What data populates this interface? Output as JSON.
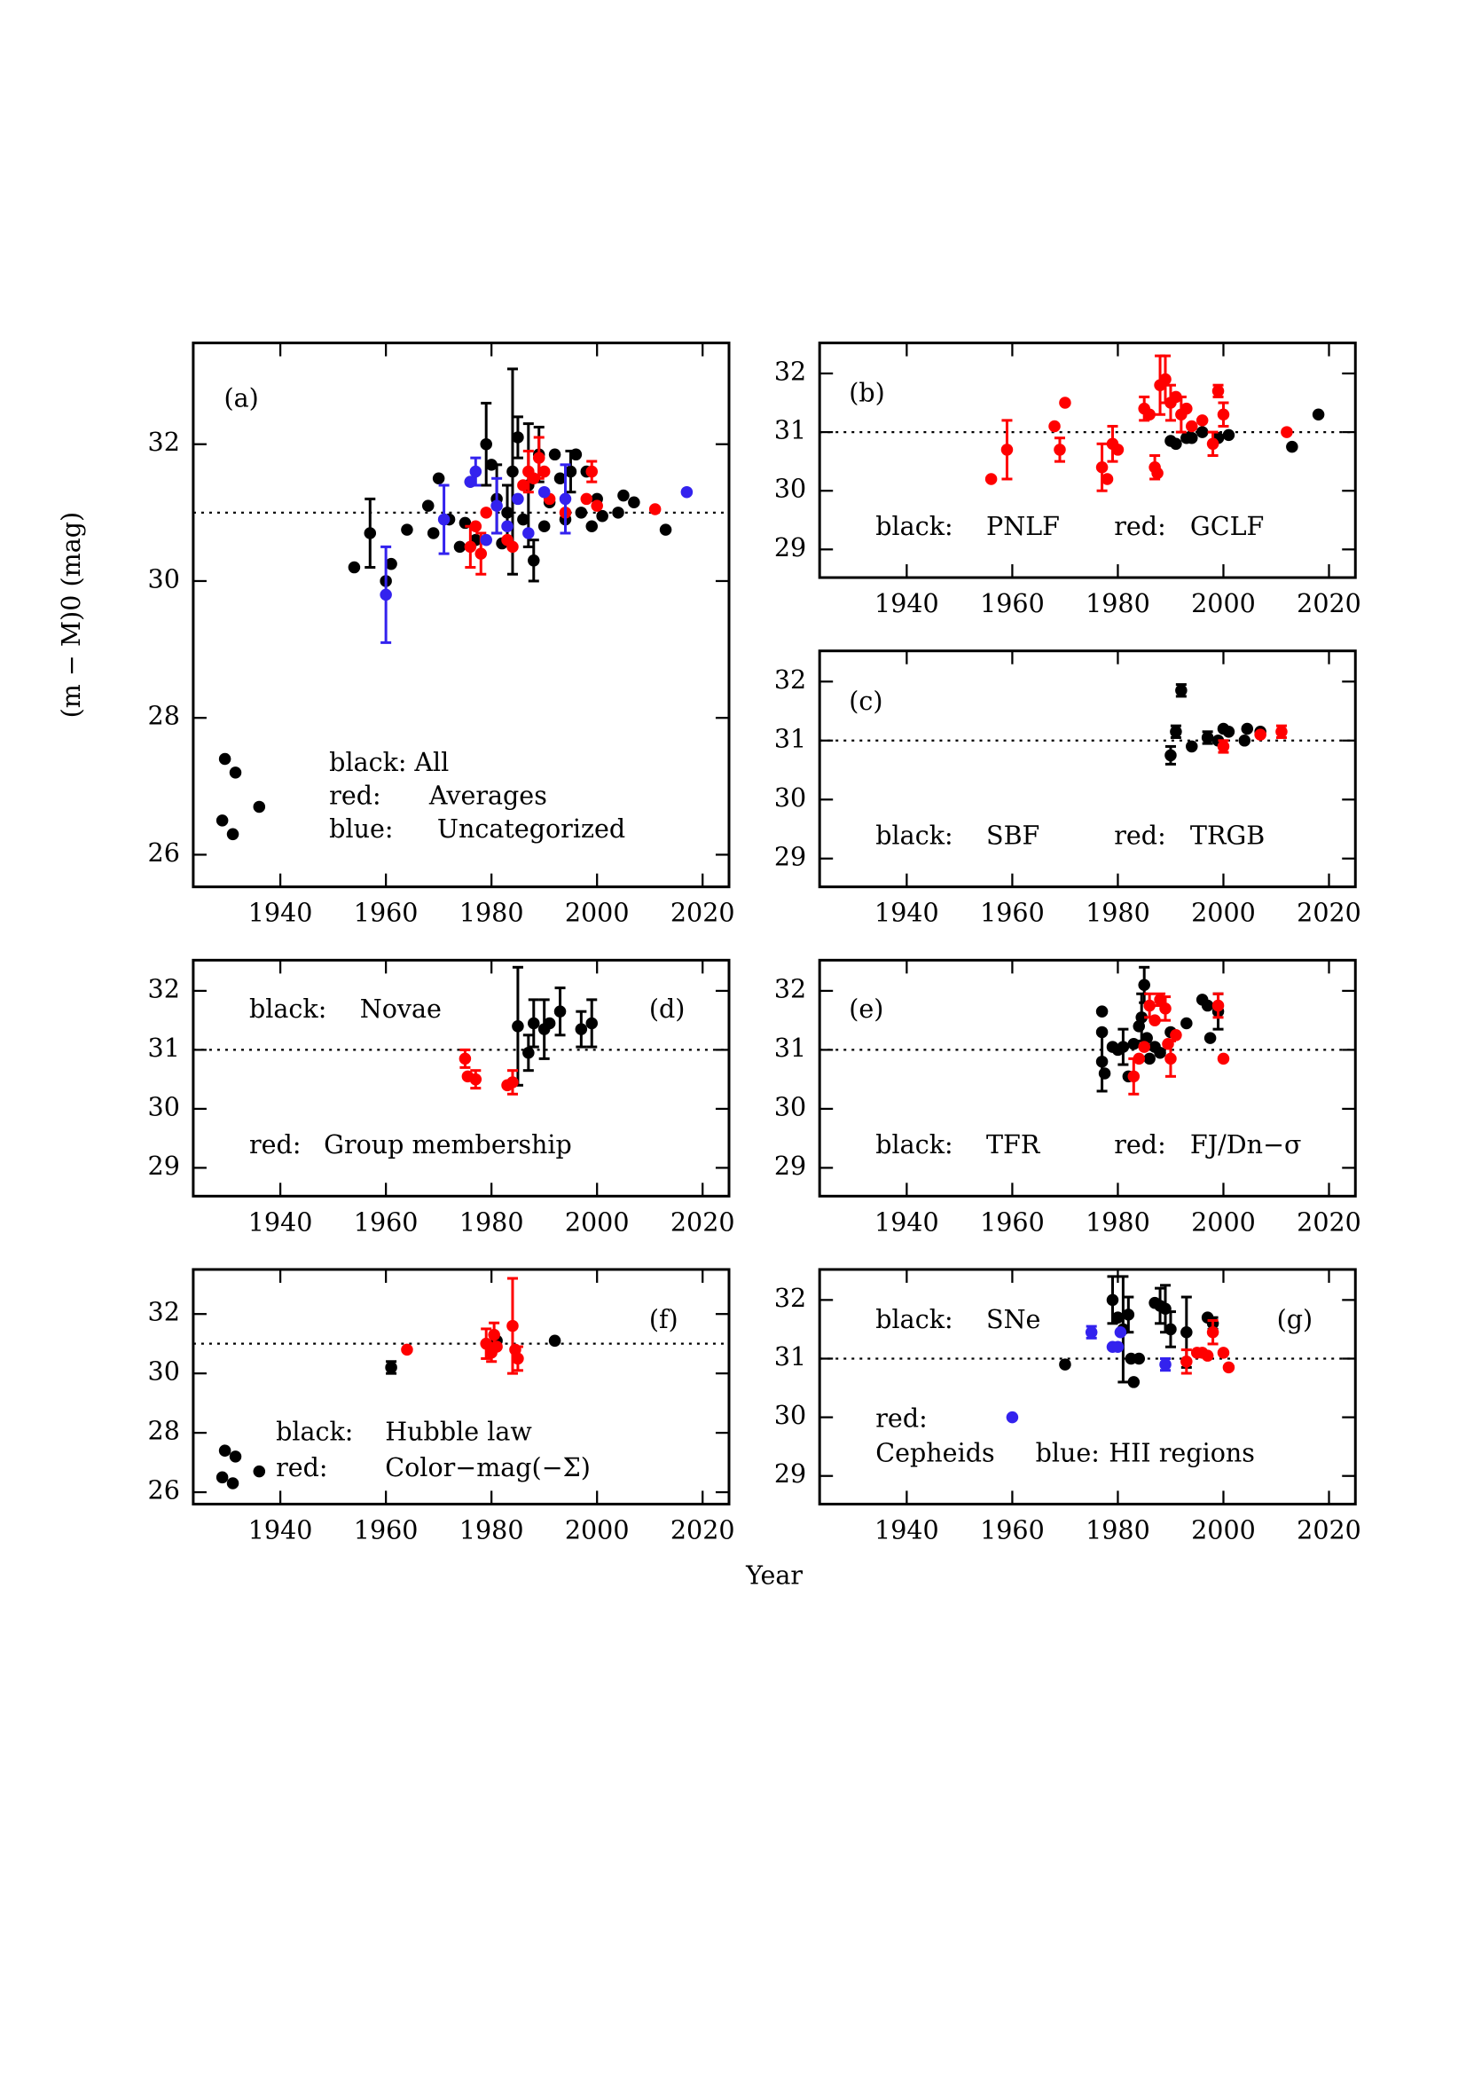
{
  "figure": {
    "xlabel": "Year",
    "ylabel": "(m − M)0 (mag)"
  },
  "chart_data": [
    {
      "type": "scatter",
      "label": "(a)",
      "xlim": [
        1923.5,
        2025
      ],
      "ylim": [
        25.53,
        33.48
      ],
      "xticks": [
        1940,
        1960,
        1980,
        2000,
        2020
      ],
      "yticks": [
        26,
        28,
        30,
        32
      ],
      "reference_line": 31,
      "series": [
        {
          "key": "black:",
          "name": "All",
          "color": "#000000",
          "x": [
            1929,
            1929.5,
            1931,
            1931.5,
            1936,
            1954,
            1957,
            1960,
            1961,
            1964,
            1968,
            1969,
            1970,
            1972,
            1974,
            1975,
            1976,
            1977,
            1979,
            1980,
            1981,
            1982,
            1983,
            1984,
            1985,
            1986,
            1987,
            1988,
            1989,
            1990,
            1991,
            1992,
            1993,
            1994,
            1995,
            1996,
            1997,
            1998,
            1999,
            2000,
            2001,
            2004,
            2005,
            2007,
            2013
          ],
          "values": [
            26.5,
            27.4,
            26.3,
            27.2,
            26.7,
            30.2,
            30.7,
            30.0,
            30.25,
            30.75,
            31.1,
            30.7,
            31.5,
            30.9,
            30.5,
            30.85,
            31.45,
            30.6,
            32.0,
            31.7,
            31.2,
            30.55,
            31.0,
            31.6,
            32.1,
            30.9,
            31.4,
            30.3,
            31.85,
            30.8,
            31.15,
            31.85,
            31.5,
            30.9,
            31.6,
            31.85,
            31.0,
            31.6,
            30.8,
            31.2,
            30.95,
            31.0,
            31.25,
            31.15,
            30.75
          ],
          "errors": [
            null,
            null,
            null,
            null,
            null,
            null,
            0.5,
            null,
            null,
            null,
            null,
            null,
            null,
            null,
            null,
            null,
            null,
            null,
            0.6,
            null,
            0.5,
            null,
            0.4,
            1.5,
            0.3,
            null,
            0.9,
            0.3,
            0.4,
            null,
            null,
            null,
            null,
            null,
            0.3,
            null,
            null,
            null,
            null,
            null,
            null,
            null,
            null,
            null,
            null
          ]
        },
        {
          "key": "red:",
          "name": "Averages",
          "color": "#ff0000",
          "x": [
            1976,
            1977,
            1978,
            1979,
            1983,
            1984,
            1986,
            1987,
            1988,
            1989,
            1990,
            1991,
            1994,
            1998,
            1999,
            2000,
            2011
          ],
          "values": [
            30.5,
            30.8,
            30.4,
            31.0,
            30.6,
            30.5,
            31.4,
            31.6,
            31.5,
            31.8,
            31.6,
            31.2,
            31.0,
            31.2,
            31.6,
            31.1,
            31.05
          ],
          "errors": [
            0.3,
            null,
            0.3,
            null,
            null,
            null,
            null,
            0.3,
            null,
            0.3,
            null,
            null,
            null,
            null,
            0.15,
            null,
            null
          ]
        },
        {
          "key": "blue:",
          "name": "Uncategorized",
          "color": "#3322ee",
          "x": [
            1960,
            1971,
            1976,
            1977,
            1979,
            1981,
            1983,
            1985,
            1987,
            1990,
            1994,
            2017
          ],
          "values": [
            29.8,
            30.9,
            31.45,
            31.6,
            30.6,
            31.1,
            30.8,
            31.2,
            30.7,
            31.3,
            31.2,
            31.3
          ],
          "errors": [
            0.7,
            0.5,
            null,
            0.2,
            null,
            0.4,
            null,
            null,
            null,
            null,
            0.5,
            null
          ]
        }
      ]
    },
    {
      "type": "scatter",
      "label": "(b)",
      "xlim": [
        1923.5,
        2025
      ],
      "ylim": [
        28.52,
        32.52
      ],
      "xticks": [
        1940,
        1960,
        1980,
        2000,
        2020
      ],
      "yticks": [
        29,
        30,
        31,
        32
      ],
      "reference_line": 31,
      "series": [
        {
          "key": "black:",
          "name": "PNLF",
          "color": "#000000",
          "x": [
            1990,
            1991,
            1993,
            1994,
            1996,
            1999,
            2001,
            2013,
            2018
          ],
          "values": [
            30.85,
            30.8,
            30.9,
            30.9,
            31.0,
            30.9,
            30.95,
            30.75,
            31.3
          ],
          "errors": [
            null,
            null,
            null,
            null,
            null,
            null,
            null,
            null,
            null
          ]
        },
        {
          "key": "red:",
          "name": "GCLF",
          "color": "#ff0000",
          "x": [
            1956,
            1959,
            1968,
            1969,
            1970,
            1977,
            1978,
            1979,
            1980,
            1985,
            1986,
            1987,
            1987.5,
            1988,
            1989,
            1990,
            1991,
            1992,
            1993,
            1994,
            1996,
            1998,
            1999,
            2000,
            2012
          ],
          "values": [
            30.2,
            30.7,
            31.1,
            30.7,
            31.5,
            30.4,
            30.2,
            30.8,
            30.7,
            31.4,
            31.3,
            30.4,
            30.3,
            31.8,
            31.9,
            31.5,
            31.6,
            31.3,
            31.4,
            31.1,
            31.2,
            30.8,
            31.7,
            31.3,
            31.0
          ],
          "errors": [
            null,
            0.5,
            null,
            0.2,
            null,
            0.4,
            null,
            0.3,
            null,
            0.2,
            null,
            0.2,
            null,
            0.5,
            0.4,
            0.3,
            null,
            0.3,
            null,
            null,
            null,
            0.2,
            0.1,
            0.2,
            null
          ]
        }
      ]
    },
    {
      "type": "scatter",
      "label": "(c)",
      "xlim": [
        1923.5,
        2025
      ],
      "ylim": [
        28.52,
        32.52
      ],
      "xticks": [
        1940,
        1960,
        1980,
        2000,
        2020
      ],
      "yticks": [
        29,
        30,
        31,
        32
      ],
      "reference_line": 31,
      "series": [
        {
          "key": "black:",
          "name": "SBF",
          "color": "#000000",
          "x": [
            1990,
            1991,
            1992,
            1994,
            1997,
            1999,
            2000,
            2001,
            2004,
            2004.5,
            2007
          ],
          "values": [
            30.75,
            31.15,
            31.85,
            30.9,
            31.05,
            31.0,
            31.2,
            31.15,
            31.0,
            31.2,
            31.15
          ],
          "errors": [
            0.15,
            0.1,
            0.1,
            null,
            0.1,
            null,
            null,
            null,
            null,
            null,
            null
          ]
        },
        {
          "key": "red:",
          "name": "TRGB",
          "color": "#ff0000",
          "x": [
            2000,
            2007,
            2011
          ],
          "values": [
            30.9,
            31.1,
            31.15
          ],
          "errors": [
            0.1,
            null,
            0.1
          ]
        }
      ]
    },
    {
      "type": "scatter",
      "label": "(d)",
      "xlim": [
        1923.5,
        2025
      ],
      "ylim": [
        28.52,
        32.52
      ],
      "xticks": [
        1940,
        1960,
        1980,
        2000,
        2020
      ],
      "yticks": [
        29,
        30,
        31,
        32
      ],
      "reference_line": 31,
      "series": [
        {
          "key": "black:",
          "name": "Novae",
          "color": "#000000",
          "x": [
            1985,
            1987,
            1988,
            1990,
            1991,
            1993,
            1997,
            1999
          ],
          "values": [
            31.4,
            30.95,
            31.45,
            31.35,
            31.45,
            31.65,
            31.35,
            31.45
          ],
          "errors": [
            1.0,
            0.3,
            0.4,
            0.5,
            null,
            0.4,
            0.3,
            0.4
          ]
        },
        {
          "key": "red:",
          "name": "Group membership",
          "color": "#ff0000",
          "x": [
            1975,
            1975.5,
            1977,
            1983,
            1984
          ],
          "values": [
            30.85,
            30.55,
            30.5,
            30.4,
            30.45
          ],
          "errors": [
            0.15,
            null,
            0.15,
            null,
            0.2
          ]
        }
      ]
    },
    {
      "type": "scatter",
      "label": "(e)",
      "xlim": [
        1923.5,
        2025
      ],
      "ylim": [
        28.52,
        32.52
      ],
      "xticks": [
        1940,
        1960,
        1980,
        2000,
        2020
      ],
      "yticks": [
        29,
        30,
        31,
        32
      ],
      "reference_line": 31,
      "series": [
        {
          "key": "black:",
          "name": "TFR",
          "color": "#000000",
          "x": [
            1977,
            1977,
            1977,
            1977.5,
            1979,
            1980,
            1981,
            1982,
            1983,
            1984,
            1984.5,
            1985,
            1985.5,
            1986,
            1987,
            1988,
            1990,
            1993,
            1996,
            1997,
            1997.5,
            1999
          ],
          "values": [
            31.65,
            31.3,
            30.8,
            30.6,
            31.05,
            31.0,
            31.05,
            30.55,
            31.1,
            31.4,
            31.55,
            32.1,
            31.2,
            30.85,
            31.05,
            30.95,
            31.3,
            31.45,
            31.85,
            31.75,
            31.2,
            31.65
          ],
          "errors": [
            null,
            null,
            0.5,
            null,
            null,
            null,
            0.3,
            null,
            null,
            null,
            0.4,
            0.3,
            null,
            null,
            null,
            null,
            null,
            null,
            null,
            null,
            null,
            0.3
          ]
        },
        {
          "key": "red:",
          "name": "FJ/Dn−σ",
          "color": "#ff0000",
          "x": [
            1983,
            1984,
            1985,
            1986,
            1987,
            1988,
            1989,
            1989.5,
            1990,
            1991,
            1999,
            2000
          ],
          "values": [
            30.55,
            30.85,
            31.05,
            31.75,
            31.5,
            31.85,
            31.7,
            31.1,
            30.85,
            31.25,
            31.75,
            30.85
          ],
          "errors": [
            0.3,
            null,
            null,
            0.2,
            null,
            0.1,
            0.2,
            null,
            0.3,
            null,
            0.2,
            null
          ]
        }
      ]
    },
    {
      "type": "scatter",
      "label": "(f)",
      "xlim": [
        1923.5,
        2025
      ],
      "ylim": [
        25.6,
        33.5
      ],
      "xticks": [
        1940,
        1960,
        1980,
        2000,
        2020
      ],
      "yticks": [
        26,
        28,
        30,
        32
      ],
      "reference_line": 31,
      "series": [
        {
          "key": "black:",
          "name": "Hubble law",
          "color": "#000000",
          "x": [
            1929,
            1929.5,
            1931,
            1931.5,
            1936,
            1961,
            1981,
            1992
          ],
          "values": [
            26.5,
            27.4,
            26.3,
            27.2,
            26.7,
            30.2,
            31.1,
            31.1
          ],
          "errors": [
            null,
            null,
            null,
            null,
            null,
            0.2,
            null,
            null
          ]
        },
        {
          "key": "red:",
          "name": "Color−mag(−Σ)",
          "color": "#ff0000",
          "x": [
            1964,
            1979,
            1980,
            1980.5,
            1981,
            1984,
            1984.5,
            1985
          ],
          "values": [
            30.8,
            31.0,
            30.7,
            31.3,
            30.9,
            31.6,
            30.8,
            30.5
          ],
          "errors": [
            null,
            0.5,
            0.3,
            0.4,
            null,
            1.6,
            null,
            0.4
          ]
        }
      ]
    },
    {
      "type": "scatter",
      "label": "(g)",
      "xlim": [
        1923.5,
        2025
      ],
      "ylim": [
        28.52,
        32.52
      ],
      "xticks": [
        1940,
        1960,
        1980,
        2000,
        2020
      ],
      "yticks": [
        29,
        30,
        31,
        32
      ],
      "reference_line": 31,
      "series": [
        {
          "key": "black:",
          "name": "SNe",
          "color": "#000000",
          "x": [
            1970,
            1979,
            1980,
            1981,
            1982,
            1982.5,
            1983,
            1984,
            1987,
            1988,
            1989,
            1990,
            1993,
            1997,
            1998
          ],
          "values": [
            30.9,
            32.0,
            31.7,
            31.5,
            31.75,
            31.0,
            30.6,
            31.0,
            31.95,
            31.9,
            31.85,
            31.5,
            31.45,
            31.7,
            31.6
          ],
          "errors": [
            null,
            0.4,
            null,
            0.9,
            0.3,
            null,
            null,
            null,
            null,
            0.3,
            0.4,
            0.3,
            0.6,
            null,
            0.1
          ]
        },
        {
          "key": "red:",
          "name": "Cepheids",
          "color": "#ff0000",
          "x": [
            1993,
            1995,
            1996,
            1997,
            1998,
            2000,
            2001
          ],
          "values": [
            30.95,
            31.1,
            31.1,
            31.05,
            31.45,
            31.1,
            30.85
          ],
          "errors": [
            0.2,
            null,
            null,
            null,
            0.2,
            null,
            null
          ]
        },
        {
          "key": "blue:",
          "name": "HII regions",
          "color": "#3322ee",
          "x": [
            1960,
            1975,
            1979,
            1980,
            1980.5,
            1989
          ],
          "values": [
            30.0,
            31.45,
            31.2,
            31.2,
            31.45,
            30.9
          ],
          "errors": [
            null,
            0.1,
            null,
            null,
            null,
            0.1
          ]
        }
      ]
    }
  ]
}
